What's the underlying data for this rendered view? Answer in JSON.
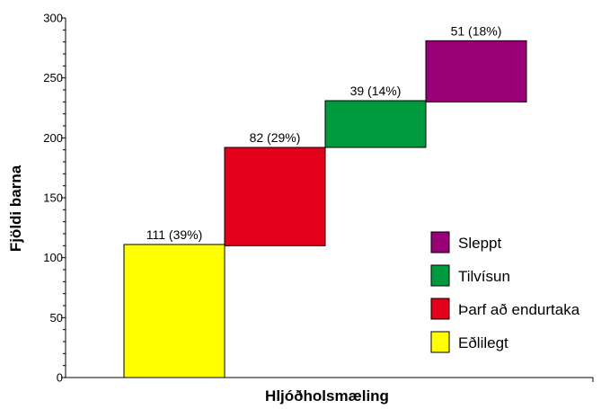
{
  "chart_data": {
    "type": "bar",
    "subtype": "waterfall-stacked",
    "title": "",
    "xlabel": "Hljóðholsmæling",
    "ylabel": "Fjöldi barna",
    "ylim": [
      0,
      300
    ],
    "yticks": [
      "0",
      "50",
      "100",
      "150",
      "200",
      "250",
      "300"
    ],
    "grid": false,
    "legend_position": "right",
    "segments": [
      {
        "name": "Eðlilegt",
        "value": 111,
        "base": 0,
        "label": "111 (39%)",
        "color": "#FFFF00"
      },
      {
        "name": "Þarf að endurtaka",
        "value": 82,
        "base": 110,
        "label": "82 (29%)",
        "color": "#E2001A"
      },
      {
        "name": "Tilvísun",
        "value": 39,
        "base": 192,
        "label": "39 (14%)",
        "color": "#009A3E"
      },
      {
        "name": "Sleppt",
        "value": 51,
        "base": 230,
        "label": "51 (18%)",
        "color": "#990077"
      }
    ],
    "legend": [
      "Sleppt",
      "Tilvísun",
      "Þarf að endurtaka",
      "Eðlilegt"
    ]
  }
}
